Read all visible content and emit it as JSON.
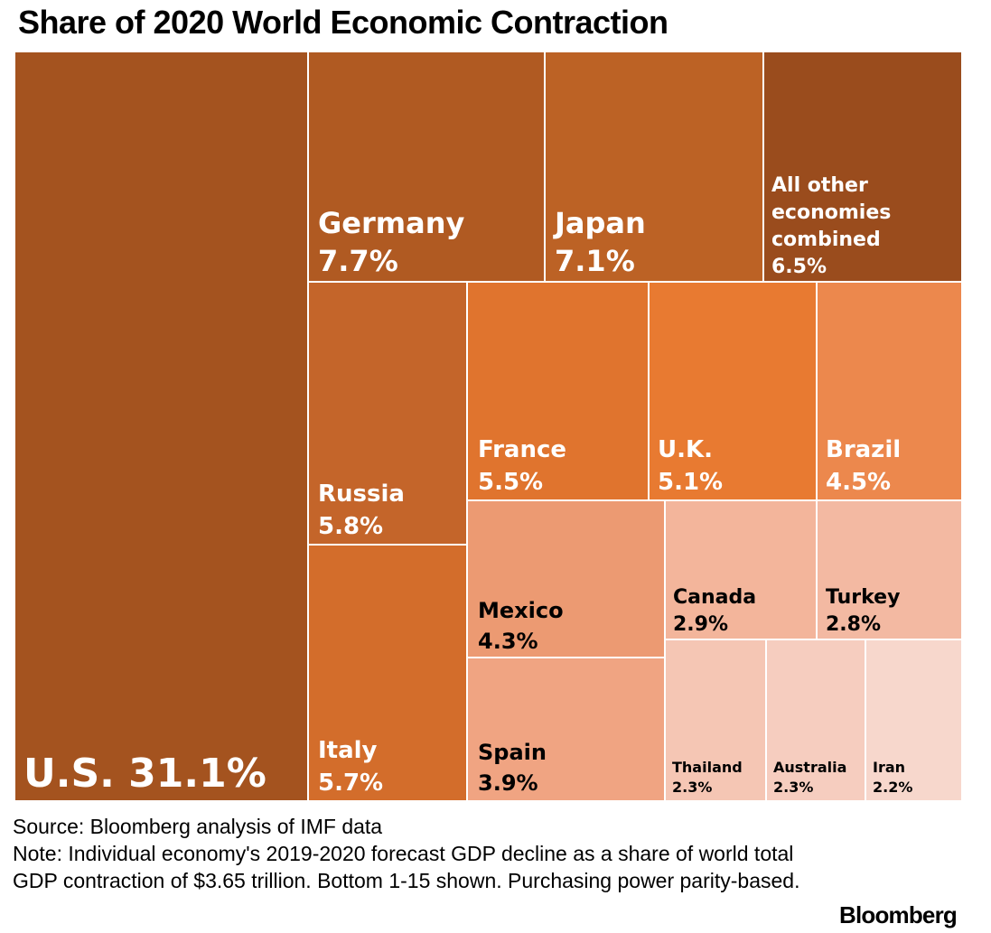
{
  "chart_data": {
    "type": "treemap",
    "title": "Share of 2020 World Economic Contraction",
    "unit": "%",
    "items": [
      {
        "label": "U.S.",
        "value": 31.1,
        "color": "#a4531f",
        "text_color": "#ffffff"
      },
      {
        "label": "Germany",
        "value": 7.7,
        "color": "#b05a22",
        "text_color": "#ffffff"
      },
      {
        "label": "Japan",
        "value": 7.1,
        "color": "#bc6225",
        "text_color": "#ffffff"
      },
      {
        "label": "All other economies combined",
        "value": 6.5,
        "color": "#9a4c1d",
        "text_color": "#ffffff"
      },
      {
        "label": "Russia",
        "value": 5.8,
        "color": "#c4652a",
        "text_color": "#ffffff"
      },
      {
        "label": "Italy",
        "value": 5.7,
        "color": "#d36d2b",
        "text_color": "#ffffff"
      },
      {
        "label": "France",
        "value": 5.5,
        "color": "#e0742e",
        "text_color": "#ffffff"
      },
      {
        "label": "U.K.",
        "value": 5.1,
        "color": "#e87a31",
        "text_color": "#ffffff"
      },
      {
        "label": "Brazil",
        "value": 4.5,
        "color": "#ec884d",
        "text_color": "#ffffff"
      },
      {
        "label": "Mexico",
        "value": 4.3,
        "color": "#ec9a72",
        "text_color": "#000000"
      },
      {
        "label": "Spain",
        "value": 3.9,
        "color": "#f0a482",
        "text_color": "#000000"
      },
      {
        "label": "Canada",
        "value": 2.9,
        "color": "#f3b59b",
        "text_color": "#000000"
      },
      {
        "label": "Turkey",
        "value": 2.8,
        "color": "#f3b9a2",
        "text_color": "#000000"
      },
      {
        "label": "Thailand",
        "value": 2.3,
        "color": "#f5c6b4",
        "text_color": "#000000"
      },
      {
        "label": "Australia",
        "value": 2.3,
        "color": "#f6cdbf",
        "text_color": "#000000"
      },
      {
        "label": "Iran",
        "value": 2.2,
        "color": "#f7d7cc",
        "text_color": "#000000"
      }
    ]
  },
  "footer": {
    "source": "Source: Bloomberg analysis of IMF data",
    "note_line1": "Note: Individual economy's 2019-2020 forecast GDP decline as a share of world total",
    "note_line2": "GDP contraction of $3.65 trillion. Bottom 1-15 shown. Purchasing power parity-based.",
    "brand": "Bloomberg"
  }
}
